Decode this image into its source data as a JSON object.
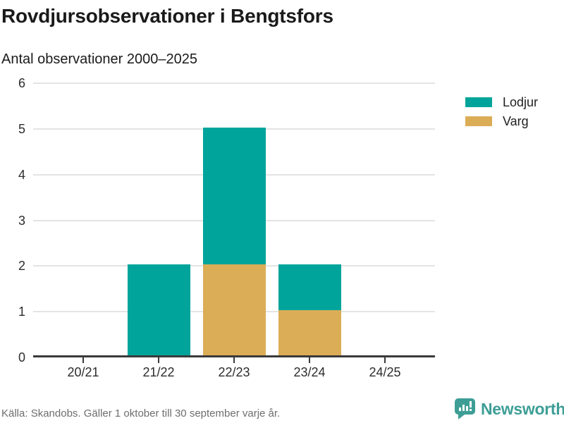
{
  "chart_data": {
    "type": "bar",
    "stacked": true,
    "title": "Rovdjursobservationer i Bengtsfors",
    "subtitle": "Antal observationer 2000–2025",
    "categories": [
      "20/21",
      "21/22",
      "22/23",
      "23/24",
      "24/25"
    ],
    "series": [
      {
        "name": "Lodjur",
        "color": "#00a49b",
        "values": [
          0,
          2,
          3,
          1,
          0
        ]
      },
      {
        "name": "Varg",
        "color": "#dcad57",
        "values": [
          0,
          0,
          2,
          1,
          0
        ]
      }
    ],
    "stack_order_bottom_to_top": [
      "Varg",
      "Lodjur"
    ],
    "ylim": [
      0,
      6
    ],
    "yticks": [
      0,
      1,
      2,
      3,
      4,
      5,
      6
    ],
    "xlabel": "",
    "ylabel": "",
    "grid": true,
    "legend_position": "right",
    "grid_color": "#e4e4e4",
    "axis_color": "#3a3a3a",
    "background": "#ffffff",
    "source": "Källa: Skandobs. Gäller 1 oktober till 30 september varje år."
  },
  "brand": {
    "name": "Newsworthy",
    "color": "#3e9e96"
  }
}
